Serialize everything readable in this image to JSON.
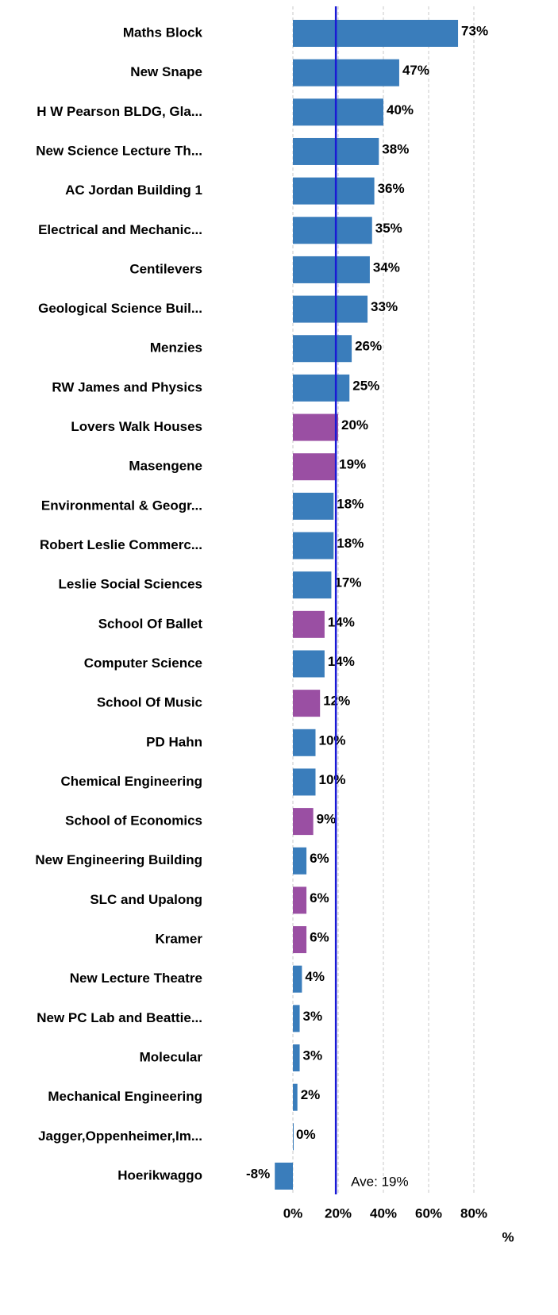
{
  "chart_data": {
    "type": "barh",
    "categories": [
      "Maths Block",
      "New Snape",
      "H W Pearson BLDG, Gla...",
      "New Science Lecture Th...",
      "AC Jordan Building 1",
      "Electrical and Mechanic...",
      "Centilevers",
      "Geological Science Buil...",
      "Menzies",
      "RW James and Physics",
      "Lovers Walk Houses",
      "Masengene",
      "Environmental & Geogr...",
      "Robert Leslie Commerc...",
      "Leslie Social Sciences",
      "School Of Ballet",
      "Computer Science",
      "School Of Music",
      "PD Hahn",
      "Chemical Engineering",
      "School of Economics",
      "New Engineering Building",
      "SLC and Upalong",
      "Kramer",
      "New Lecture Theatre",
      "New PC Lab and Beattie...",
      "Molecular",
      "Mechanical Engineering",
      "Jagger,Oppenheimer,Im...",
      "Hoerikwaggo"
    ],
    "values": [
      73,
      47,
      40,
      38,
      36,
      35,
      34,
      33,
      26,
      25,
      20,
      19,
      18,
      18,
      17,
      14,
      14,
      12,
      10,
      10,
      9,
      6,
      6,
      6,
      4,
      3,
      3,
      2,
      0,
      -8
    ],
    "value_labels": [
      "73%",
      "47%",
      "40%",
      "38%",
      "36%",
      "35%",
      "34%",
      "33%",
      "26%",
      "25%",
      "20%",
      "19%",
      "18%",
      "18%",
      "17%",
      "14%",
      "14%",
      "12%",
      "10%",
      "10%",
      "9%",
      "6%",
      "6%",
      "6%",
      "4%",
      "3%",
      "3%",
      "2%",
      "0%",
      "-8%"
    ],
    "colors": [
      "#3a7dbb",
      "#3a7dbb",
      "#3a7dbb",
      "#3a7dbb",
      "#3a7dbb",
      "#3a7dbb",
      "#3a7dbb",
      "#3a7dbb",
      "#3a7dbb",
      "#3a7dbb",
      "#9a4fa3",
      "#9a4fa3",
      "#3a7dbb",
      "#3a7dbb",
      "#3a7dbb",
      "#9a4fa3",
      "#3a7dbb",
      "#9a4fa3",
      "#3a7dbb",
      "#3a7dbb",
      "#9a4fa3",
      "#3a7dbb",
      "#9a4fa3",
      "#9a4fa3",
      "#3a7dbb",
      "#3a7dbb",
      "#3a7dbb",
      "#3a7dbb",
      "#3a7dbb",
      "#3a7dbb"
    ],
    "xlim": [
      -10,
      100
    ],
    "xticks": [
      {
        "value": 0,
        "label": "0%"
      },
      {
        "value": 20,
        "label": "20%"
      },
      {
        "value": 40,
        "label": "40%"
      },
      {
        "value": 60,
        "label": "60%"
      },
      {
        "value": 80,
        "label": "80%"
      }
    ],
    "xlabel": "%",
    "grid": true,
    "average": {
      "value": 19,
      "label": "Ave: 19%",
      "color": "#1a1ad6"
    }
  }
}
